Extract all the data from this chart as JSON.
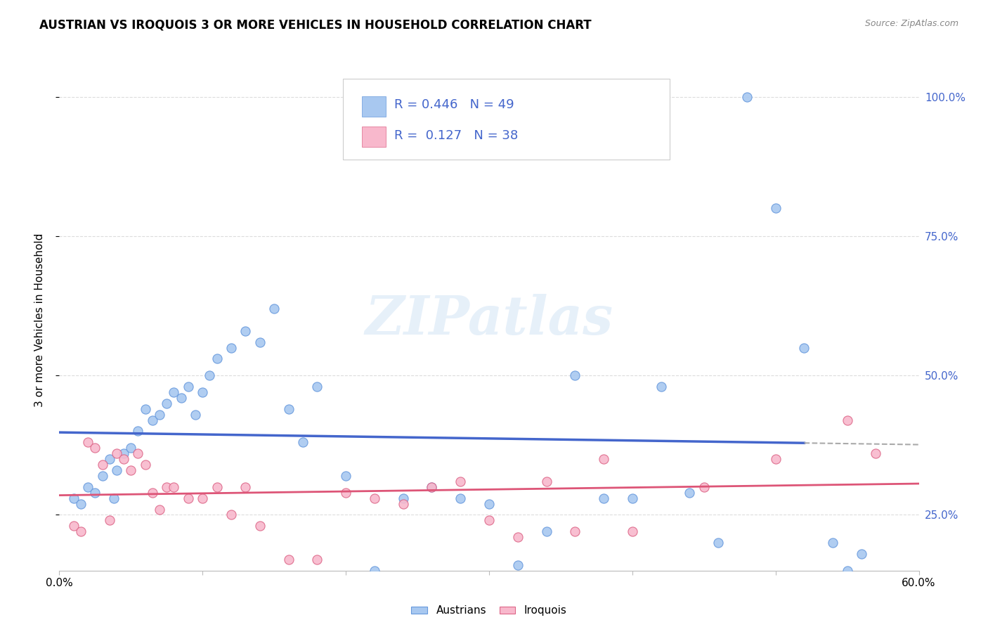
{
  "title": "AUSTRIAN VS IROQUOIS 3 OR MORE VEHICLES IN HOUSEHOLD CORRELATION CHART",
  "source": "Source: ZipAtlas.com",
  "ylabel": "3 or more Vehicles in Household",
  "xlim": [
    0.0,
    60.0
  ],
  "ylim": [
    15.0,
    105.0
  ],
  "yticks": [
    25.0,
    50.0,
    75.0,
    100.0
  ],
  "xticks": [
    0.0,
    10.0,
    20.0,
    30.0,
    40.0,
    50.0,
    60.0
  ],
  "color_austrians_fill": "#A8C8F0",
  "color_austrians_edge": "#6699DD",
  "color_iroquois_fill": "#F8B8CC",
  "color_iroquois_edge": "#DD6688",
  "color_line_austrians": "#4466CC",
  "color_line_iroquois": "#DD5577",
  "color_dashed": "#AAAAAA",
  "color_ytick_labels": "#4466CC",
  "background_color": "#FFFFFF",
  "watermark": "ZIPatlas",
  "legend_blue": "#4466CC",
  "austrians_x": [
    1.0,
    1.5,
    2.0,
    2.5,
    3.0,
    3.5,
    3.8,
    4.0,
    4.5,
    5.0,
    5.5,
    6.0,
    6.5,
    7.0,
    7.5,
    8.0,
    8.5,
    9.0,
    9.5,
    10.0,
    10.5,
    11.0,
    12.0,
    13.0,
    14.0,
    15.0,
    16.0,
    17.0,
    18.0,
    20.0,
    22.0,
    24.0,
    26.0,
    28.0,
    30.0,
    32.0,
    34.0,
    36.0,
    38.0,
    40.0,
    42.0,
    44.0,
    46.0,
    48.0,
    50.0,
    52.0,
    54.0,
    55.0,
    56.0
  ],
  "austrians_y": [
    28.0,
    27.0,
    30.0,
    29.0,
    32.0,
    35.0,
    28.0,
    33.0,
    36.0,
    37.0,
    40.0,
    44.0,
    42.0,
    43.0,
    45.0,
    47.0,
    46.0,
    48.0,
    43.0,
    47.0,
    50.0,
    53.0,
    55.0,
    58.0,
    56.0,
    62.0,
    44.0,
    38.0,
    48.0,
    32.0,
    15.0,
    28.0,
    30.0,
    28.0,
    27.0,
    16.0,
    22.0,
    50.0,
    28.0,
    28.0,
    48.0,
    29.0,
    20.0,
    100.0,
    80.0,
    55.0,
    20.0,
    15.0,
    18.0
  ],
  "iroquois_x": [
    1.0,
    1.5,
    2.0,
    2.5,
    3.0,
    3.5,
    4.0,
    4.5,
    5.0,
    5.5,
    6.0,
    6.5,
    7.0,
    7.5,
    8.0,
    9.0,
    10.0,
    11.0,
    12.0,
    13.0,
    14.0,
    16.0,
    18.0,
    20.0,
    22.0,
    24.0,
    26.0,
    28.0,
    30.0,
    32.0,
    34.0,
    36.0,
    38.0,
    40.0,
    45.0,
    50.0,
    55.0,
    57.0
  ],
  "iroquois_y": [
    23.0,
    22.0,
    38.0,
    37.0,
    34.0,
    24.0,
    36.0,
    35.0,
    33.0,
    36.0,
    34.0,
    29.0,
    26.0,
    30.0,
    30.0,
    28.0,
    28.0,
    30.0,
    25.0,
    30.0,
    23.0,
    17.0,
    17.0,
    29.0,
    28.0,
    27.0,
    30.0,
    31.0,
    24.0,
    21.0,
    31.0,
    22.0,
    35.0,
    22.0,
    30.0,
    35.0,
    42.0,
    36.0
  ]
}
